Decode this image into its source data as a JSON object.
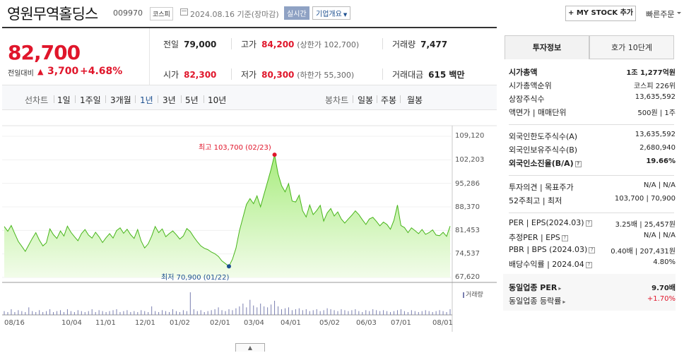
{
  "header": {
    "name": "영원무역홀딩스",
    "code": "009970",
    "market": "코스피",
    "date_text": "2024.08.16 기준(장마감)",
    "live_badge": "실시간",
    "company_info": "기업개요",
    "my_stock": "+ MY STOCK 추가",
    "quick_order": "빠른주문"
  },
  "price": {
    "current": "82,700",
    "change_label": "전일대비",
    "change_arrow": "▲",
    "change": "3,700",
    "change_pct": "+4.68%"
  },
  "stats": {
    "prev_label": "전일",
    "prev": "79,000",
    "high_label": "고가",
    "high": "84,200",
    "high_sub": "(상한가 102,700)",
    "volume_label": "거래량",
    "volume": "7,477",
    "open_label": "시가",
    "open": "82,300",
    "low_label": "저가",
    "low": "80,300",
    "low_sub": "(하한가 55,300)",
    "amount_label": "거래대금",
    "amount": "615 백만"
  },
  "periods": {
    "line_label": "선차트",
    "items": [
      "1일",
      "1주일",
      "3개월",
      "1년",
      "3년",
      "5년",
      "10년"
    ],
    "selected": "1년",
    "candle_label": "봉차트",
    "candle_items": [
      "일봉",
      "주봉",
      "월봉"
    ]
  },
  "chart_data": {
    "type": "area",
    "y_ticks": [
      "109,120",
      "102,203",
      "95,286",
      "88,370",
      "81,453",
      "74,537",
      "67,620"
    ],
    "ylim": [
      67620,
      109120
    ],
    "x_ticks": [
      "08/16",
      "10/04",
      "11/01",
      "12/01",
      "01/02",
      "02/01",
      "03/04",
      "04/01",
      "05/02",
      "06/03",
      "07/01",
      "08/01"
    ],
    "high_annotation": "최고 103,700 (02/23)",
    "low_annotation": "최저 70,900 (01/22)",
    "high": 103700,
    "low": 70900,
    "volume_label": "거래량",
    "series": [
      {
        "values": [
          82600,
          81200,
          82900,
          80500,
          78200,
          76800,
          75300,
          77200,
          79100,
          80800,
          78600,
          76900,
          77800,
          81900,
          80200,
          79100,
          81300,
          79800,
          82700,
          80900,
          79600,
          78400,
          80500,
          81700,
          80100,
          79200,
          80900,
          79600,
          77900,
          79300,
          80500,
          79200,
          81400,
          82200,
          80600,
          81800,
          80200,
          79100,
          81700,
          78300,
          76300,
          77500,
          79800,
          82600,
          80800,
          81900,
          79600,
          80500,
          81300,
          80200,
          78900,
          79800,
          82000,
          81100,
          79500,
          78100,
          76900,
          76200,
          75800,
          75100,
          74600,
          73800,
          72500,
          71700,
          70900,
          73000,
          76200,
          81400,
          85300,
          89100,
          90800,
          89300,
          91600,
          88400,
          92100,
          95700,
          99400,
          103700,
          98100,
          94600,
          92800,
          95200,
          90100,
          89800,
          91800,
          87200,
          85400,
          88900,
          86100,
          87300,
          88800,
          84200,
          86600,
          87900,
          85700,
          86900,
          84800,
          83600,
          84800,
          85900,
          87200,
          86100,
          84600,
          83200,
          84800,
          85300,
          84100,
          82800,
          83900,
          83200,
          81800,
          84400,
          88900,
          82900,
          82300,
          80800,
          82200,
          81400,
          80500,
          81700,
          80300,
          80800,
          81600,
          80100,
          79900,
          80900,
          79700,
          82700
        ]
      }
    ],
    "volume": [
      4,
      3,
      6,
      3,
      5,
      4,
      3,
      8,
      4,
      3,
      5,
      3,
      4,
      6,
      3,
      4,
      5,
      3,
      6,
      4,
      3,
      5,
      4,
      3,
      4,
      6,
      3,
      5,
      4,
      3,
      4,
      5,
      6,
      3,
      4,
      5,
      3,
      4,
      3,
      5,
      4,
      3,
      9,
      4,
      3,
      5,
      4,
      3,
      6,
      4,
      3,
      5,
      4,
      24,
      6,
      4,
      5,
      3,
      4,
      5,
      6,
      8,
      5,
      4,
      6,
      5,
      7,
      9,
      12,
      8,
      16,
      10,
      8,
      12,
      9,
      8,
      11,
      15,
      9,
      6,
      7,
      8,
      5,
      6,
      7,
      5,
      6,
      4,
      5,
      6,
      4,
      5,
      7,
      6,
      5,
      4,
      6,
      5,
      4,
      5,
      6,
      4,
      3,
      5,
      4,
      6,
      5,
      4,
      5,
      4,
      3,
      4,
      5,
      6,
      4,
      3,
      5,
      4,
      3,
      4,
      5,
      4,
      3,
      4,
      5,
      4,
      3,
      6
    ]
  },
  "right_panel": {
    "tab_on": "투자정보",
    "tab_off": "호가 10단계",
    "rows": [
      {
        "k": "시가총액",
        "v": "1조 1,277억원"
      },
      {
        "k": "시가총액순위",
        "v": "코스피 226위"
      },
      {
        "k": "상장주식수",
        "v": "13,635,592"
      },
      {
        "k": "액면가 | 매매단위",
        "v": "500원 | 1주"
      },
      {
        "k": "외국인한도주식수(A)",
        "v": "13,635,592"
      },
      {
        "k": "외국인보유주식수(B)",
        "v": "2,680,940"
      },
      {
        "k": "외국인소진율(B/A)",
        "v": "19.66%"
      },
      {
        "k": "투자의견 | 목표주가",
        "v": "N/A | N/A"
      },
      {
        "k": "52주최고 | 최저",
        "v": "103,700 | 70,900"
      },
      {
        "k": "PER | EPS(2024.03)",
        "v": "3.25배 | 25,457원"
      },
      {
        "k": "추정PER | EPS",
        "v": "N/A | N/A"
      },
      {
        "k": "PBR | BPS (2024.03)",
        "v": "0.40배 | 207,431원"
      },
      {
        "k": "배당수익률 | 2024.04",
        "v": "4.80%"
      },
      {
        "k": "동일업종 PER",
        "v": "9.70배"
      },
      {
        "k": "동일업종 등락률",
        "v": "+1.70%"
      }
    ]
  }
}
